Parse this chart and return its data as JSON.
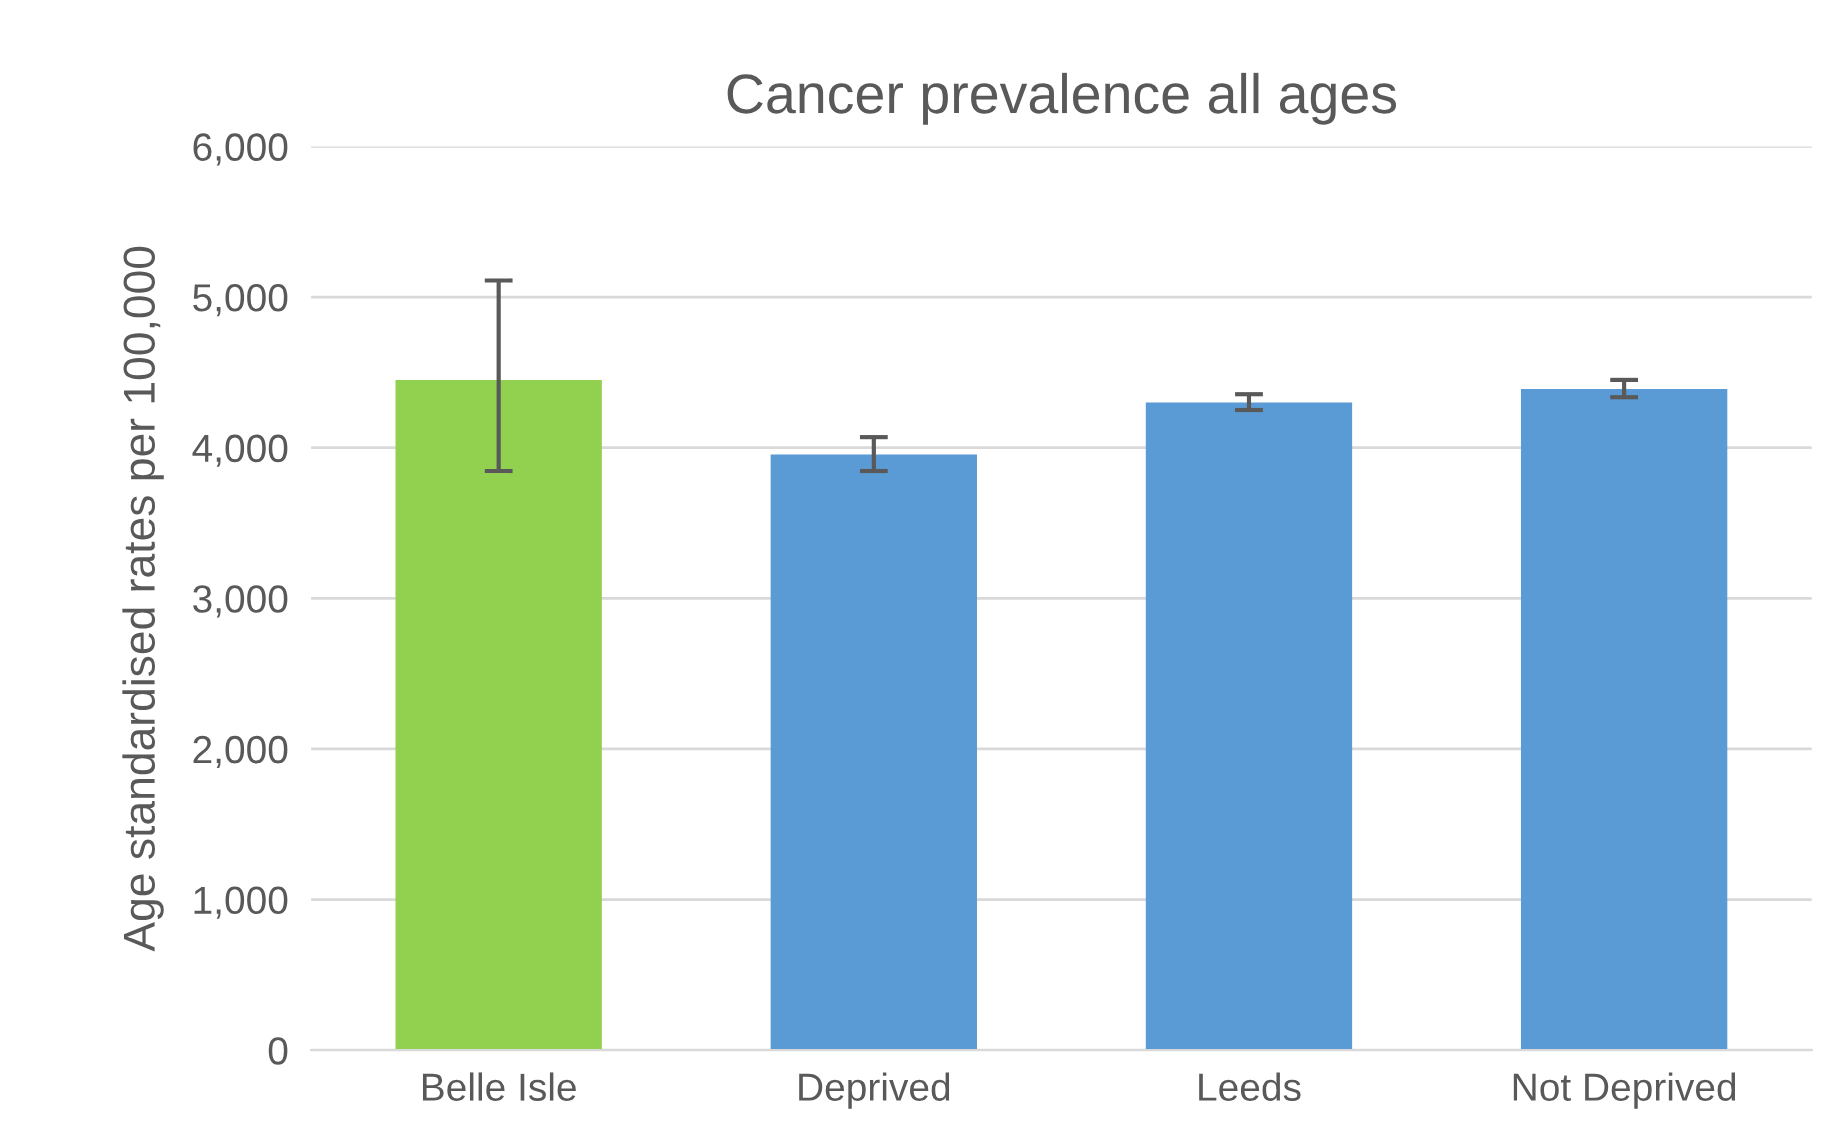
{
  "chart_data": {
    "type": "bar",
    "title": "Cancer prevalence all ages",
    "ylabel": "Age standardised rates per 100,000",
    "categories": [
      "Belle Isle",
      "Deprived",
      "Leeds",
      "Not Deprived"
    ],
    "values": [
      4450,
      3955,
      4300,
      4390
    ],
    "colors": [
      "#92d050",
      "#5b9bd5",
      "#5b9bd5",
      "#5b9bd5"
    ],
    "errors": [
      [
        3845,
        5110
      ],
      [
        3845,
        4070
      ],
      [
        4250,
        4355
      ],
      [
        4335,
        4450
      ]
    ],
    "ylim": [
      0,
      6000
    ],
    "yticks": [
      {
        "value": 0,
        "label": "0"
      },
      {
        "value": 1000,
        "label": "1,000"
      },
      {
        "value": 2000,
        "label": "2,000"
      },
      {
        "value": 3000,
        "label": "3,000"
      },
      {
        "value": 4000,
        "label": "4,000"
      },
      {
        "value": 5000,
        "label": "5,000"
      },
      {
        "value": 6000,
        "label": "6,000"
      }
    ],
    "grid": "y",
    "legend": false
  }
}
